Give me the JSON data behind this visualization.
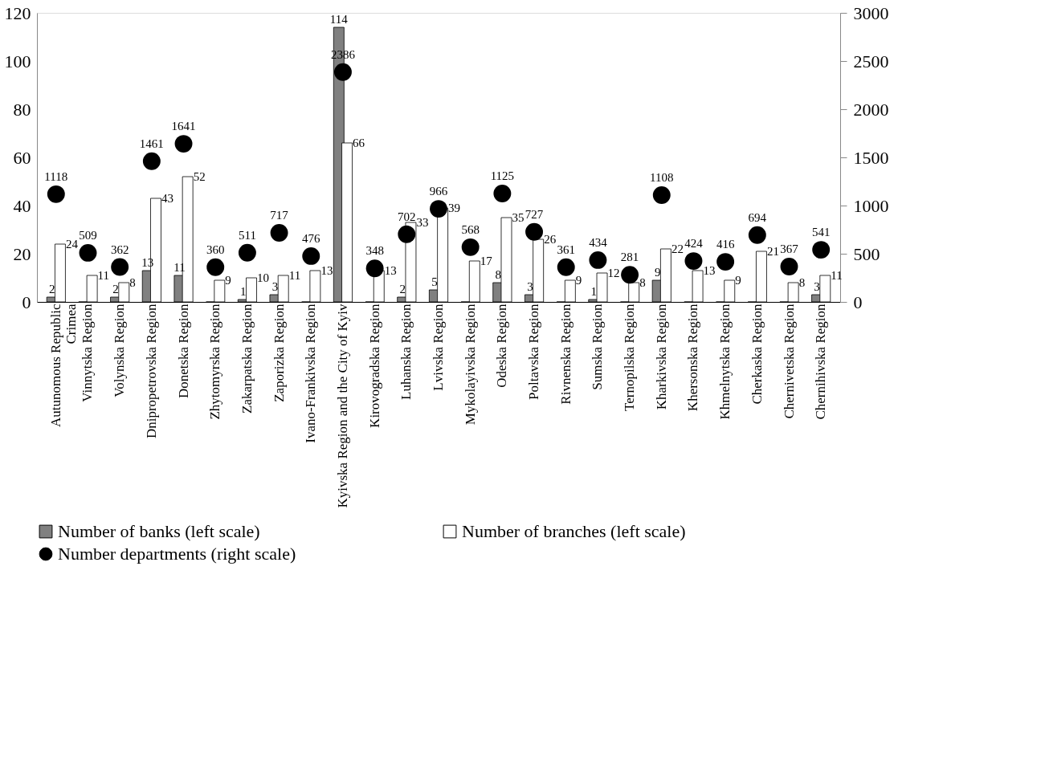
{
  "chart_data": {
    "type": "bar",
    "categories": [
      "Autunomous Republic\nCrimea",
      "Vinnytska Region",
      "Volynska Region",
      "Dnipropetrovska Region",
      "Donetska Region",
      "Zhytomyrska Region",
      "Zakarpatska Region",
      "Zaporizka Region",
      "Ivano-Frankivska Region",
      "Kyivska Region and the City of Kyiv",
      "Kirovogradska Region",
      "Luhanska Region",
      "Lvivska Region",
      "Mykolayivska Region",
      "Odeska Region",
      "Poltavska Region",
      "Rivnenska Region",
      "Sumska Region",
      "Ternopilska Region",
      "Kharkivska Region",
      "Khersonska Region",
      "Khmelnytska Region",
      "Cherkaska Region",
      "Chernivetska Region",
      "Chernihivska Region"
    ],
    "series": [
      {
        "name": "Number of banks (left scale)",
        "color": "#808080",
        "values": [
          2,
          0,
          2,
          13,
          11,
          0,
          1,
          3,
          0,
          114,
          0,
          2,
          5,
          0,
          8,
          3,
          0,
          1,
          0,
          9,
          0,
          0,
          0,
          0,
          3
        ],
        "value_labels": [
          "2",
          null,
          "2",
          "13",
          "11",
          null,
          "1",
          "3",
          null,
          "114",
          null,
          "2",
          "5",
          null,
          "8",
          "3",
          null,
          "1",
          null,
          "9",
          null,
          null,
          null,
          null,
          "3"
        ]
      },
      {
        "name": "Number of branches (left scale)",
        "color": "#ffffff",
        "values": [
          24,
          11,
          8,
          43,
          52,
          9,
          10,
          11,
          13,
          66,
          13,
          33,
          39,
          17,
          35,
          26,
          9,
          12,
          8,
          22,
          13,
          9,
          21,
          8,
          11
        ],
        "value_labels": [
          "24",
          "11",
          "8",
          "43",
          "52",
          "9",
          "10",
          "11",
          "13",
          "66",
          "13",
          "33",
          "39",
          "17",
          "35",
          "26",
          "9",
          "12",
          "8",
          "22",
          "13",
          "9",
          "21",
          "8",
          "11"
        ]
      },
      {
        "name": "Number departments (right scale)",
        "type": "scatter",
        "axis": "y2",
        "marker": "circle",
        "color": "#000000",
        "values": [
          1118,
          509,
          362,
          1461,
          1641,
          360,
          511,
          717,
          476,
          2386,
          348,
          702,
          966,
          568,
          1125,
          727,
          361,
          434,
          281,
          1108,
          424,
          416,
          694,
          367,
          541
        ],
        "value_labels": [
          "1118",
          "509",
          "362",
          "1461",
          "1641",
          "360",
          "511",
          "717",
          "476",
          "2386",
          "348",
          "702",
          "966",
          "568",
          "1125",
          "727",
          "361",
          "434",
          "281",
          "1108",
          "424",
          "416",
          "694",
          "367",
          "541"
        ]
      }
    ],
    "ylim": [
      0,
      120
    ],
    "yticks": [
      0,
      20,
      40,
      60,
      80,
      100,
      120
    ],
    "y2lim": [
      0,
      3000
    ],
    "y2ticks": [
      0,
      500,
      1000,
      1500,
      2000,
      2500,
      3000
    ],
    "grid": false,
    "legend": "bottom"
  }
}
